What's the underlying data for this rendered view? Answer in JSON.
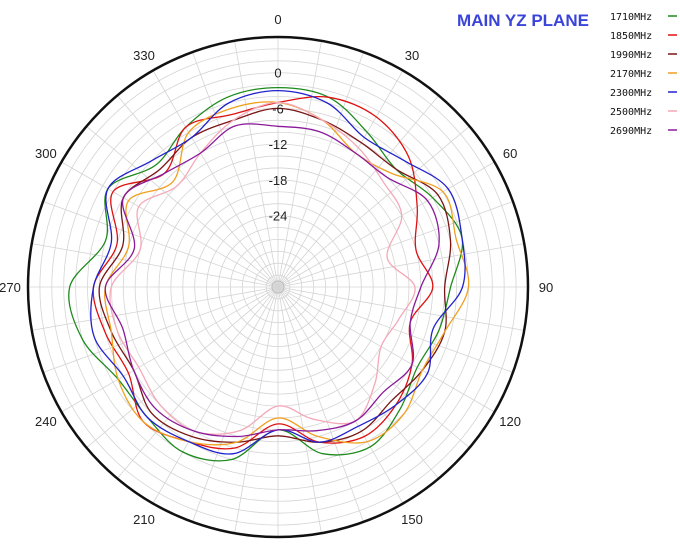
{
  "chart_data": {
    "type": "polar-line",
    "title": "MAIN YZ PLANE",
    "angle_ticks": [
      "0",
      "30",
      "60",
      "90",
      "120",
      "150",
      "180",
      "210",
      "240",
      "270",
      "300",
      "330"
    ],
    "radial_ticks": [
      "0",
      "-6",
      "-12",
      "-18",
      "-24"
    ],
    "rlim": [
      -36,
      6
    ],
    "angle_direction": "clockwise",
    "zero_location": "top",
    "grid": true,
    "legend_position": "top-right",
    "series": [
      {
        "name": "1710MHz",
        "color": "#1c8a1c",
        "angles": [
          0,
          15,
          30,
          45,
          60,
          75,
          90,
          105,
          120,
          135,
          150,
          165,
          180,
          195,
          210,
          225,
          240,
          255,
          270,
          285,
          300,
          315,
          330,
          345
        ],
        "values": [
          -2.5,
          -3,
          -6,
          -8,
          -6,
          -4,
          -7,
          -8,
          -9,
          -7,
          -5,
          -7,
          -12,
          -6,
          -4,
          -5,
          -5,
          -2,
          -1,
          -6,
          -3,
          -7,
          -5,
          -3
        ]
      },
      {
        "name": "1850MHz",
        "color": "#e01010",
        "angles": [
          0,
          15,
          30,
          45,
          60,
          75,
          90,
          105,
          120,
          135,
          150,
          165,
          180,
          195,
          210,
          225,
          240,
          255,
          270,
          285,
          300,
          315,
          330,
          345
        ],
        "values": [
          -5,
          -3,
          -3,
          -5,
          -9,
          -12,
          -10,
          -13,
          -10,
          -8,
          -7,
          -9,
          -13,
          -8,
          -6,
          -4,
          -7,
          -6,
          -5,
          -8,
          -4,
          -9,
          -5,
          -6
        ]
      },
      {
        "name": "1990MHz",
        "color": "#7a1515",
        "angles": [
          0,
          15,
          30,
          45,
          60,
          75,
          90,
          105,
          120,
          135,
          150,
          165,
          180,
          195,
          210,
          225,
          240,
          255,
          270,
          285,
          300,
          315,
          330,
          345
        ],
        "values": [
          -6,
          -7,
          -8,
          -8,
          -5,
          -6,
          -8,
          -7,
          -8,
          -9,
          -8,
          -9,
          -11,
          -9,
          -7,
          -6,
          -8,
          -7,
          -6,
          -9,
          -6,
          -8,
          -7,
          -7
        ]
      },
      {
        "name": "2170MHz",
        "color": "#f0a020",
        "angles": [
          0,
          15,
          30,
          45,
          60,
          75,
          90,
          105,
          120,
          135,
          150,
          165,
          180,
          195,
          210,
          225,
          240,
          255,
          270,
          285,
          300,
          315,
          330,
          345
        ],
        "values": [
          -5,
          -7,
          -10,
          -9,
          -4,
          -5,
          -4,
          -7,
          -8,
          -6,
          -6,
          -10,
          -14,
          -9,
          -6,
          -4,
          -5,
          -7,
          -7,
          -10,
          -7,
          -11,
          -6,
          -5
        ]
      },
      {
        "name": "2300MHz",
        "color": "#2222cc",
        "angles": [
          0,
          15,
          30,
          45,
          60,
          75,
          90,
          105,
          120,
          135,
          150,
          165,
          180,
          195,
          210,
          225,
          240,
          255,
          270,
          285,
          300,
          315,
          330,
          345
        ],
        "values": [
          -3,
          -4,
          -7,
          -6,
          -3,
          -4,
          -5,
          -9,
          -7,
          -8,
          -9,
          -9,
          -12,
          -7,
          -6,
          -5,
          -6,
          -4,
          -5,
          -7,
          -3,
          -6,
          -7,
          -4
        ]
      },
      {
        "name": "2500MHz",
        "color": "#f4a8b8",
        "angles": [
          0,
          15,
          30,
          45,
          60,
          75,
          90,
          105,
          120,
          135,
          150,
          165,
          180,
          195,
          210,
          225,
          240,
          255,
          270,
          285,
          300,
          315,
          330,
          345
        ],
        "values": [
          -5,
          -7,
          -9,
          -11,
          -12,
          -17,
          -13,
          -15,
          -16,
          -13,
          -10,
          -13,
          -16,
          -11,
          -8,
          -8,
          -9,
          -8,
          -8,
          -12,
          -9,
          -12,
          -10,
          -7
        ]
      },
      {
        "name": "2690MHz",
        "color": "#8a1a9a",
        "angles": [
          0,
          15,
          30,
          45,
          60,
          75,
          90,
          105,
          120,
          135,
          150,
          165,
          180,
          195,
          210,
          225,
          240,
          255,
          270,
          285,
          300,
          315,
          330,
          345
        ],
        "values": [
          -9,
          -9,
          -10,
          -10,
          -7,
          -8,
          -12,
          -13,
          -10,
          -11,
          -10,
          -11,
          -12,
          -10,
          -8,
          -7,
          -8,
          -9,
          -7,
          -11,
          -6,
          -9,
          -10,
          -8
        ]
      }
    ]
  }
}
